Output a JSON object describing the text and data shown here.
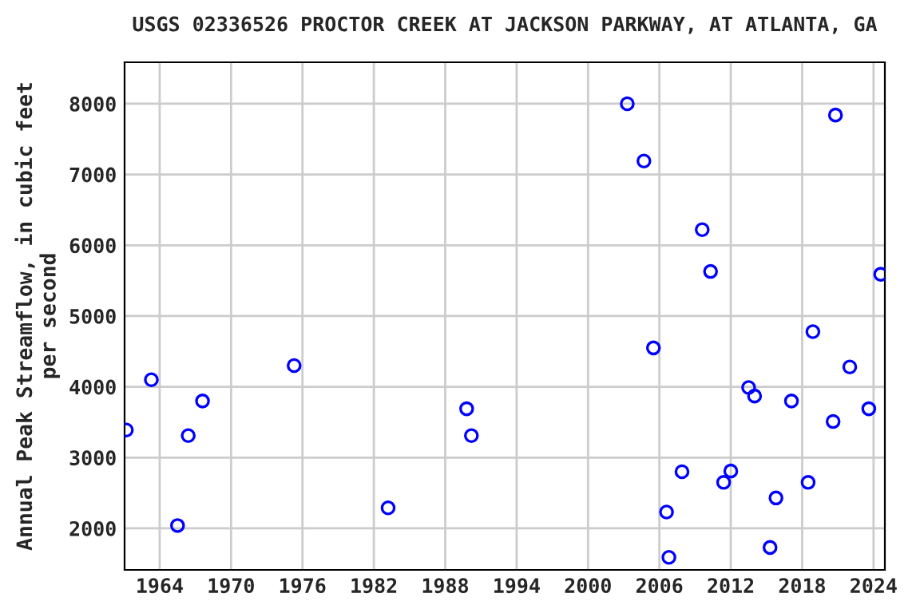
{
  "chart_data": {
    "type": "scatter",
    "title": "USGS 02336526 PROCTOR CREEK AT JACKSON PARKWAY, AT ATLANTA, GA",
    "ylabel": "Annual Peak Streamflow, in cubic feet\nper second",
    "x": [
      1961.2,
      1963.3,
      1965.5,
      1966.4,
      1967.6,
      1975.3,
      1983.2,
      1989.8,
      1990.2,
      2003.3,
      2004.7,
      2005.5,
      2006.6,
      2006.8,
      2007.9,
      2009.6,
      2010.3,
      2011.4,
      2012.0,
      2013.5,
      2014.0,
      2015.3,
      2015.8,
      2017.1,
      2018.5,
      2018.9,
      2020.6,
      2020.8,
      2022.0,
      2023.6,
      2024.6
    ],
    "series": [
      {
        "color": "#0000ff",
        "values": [
          3390,
          4100,
          2040,
          3310,
          3800,
          4300,
          2290,
          3690,
          3310,
          8000,
          7190,
          4550,
          2230,
          1590,
          2800,
          6220,
          5630,
          2650,
          2810,
          3990,
          3870,
          1730,
          2430,
          3800,
          2650,
          4780,
          3510,
          7840,
          4280,
          3690,
          5590
        ]
      }
    ],
    "xlim": [
      1961.05,
      2024.95
    ],
    "xticks": [
      1964,
      1970,
      1976,
      1982,
      1988,
      1994,
      2000,
      2006,
      2012,
      2018,
      2024
    ],
    "ylim": [
      1413,
      8586
    ],
    "yticks": [
      2000,
      3000,
      4000,
      5000,
      6000,
      7000,
      8000
    ],
    "grid": true,
    "marker": "circle"
  }
}
